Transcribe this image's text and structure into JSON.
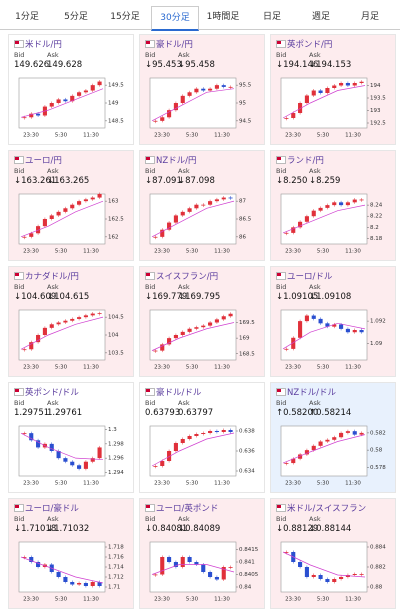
{
  "tabs": [
    "1分足",
    "5分足",
    "15分足",
    "30分足",
    "1時間足",
    "日足",
    "週足",
    "月足"
  ],
  "active_tab": 3,
  "bid_label": "Bid",
  "ask_label": "Ask",
  "times": [
    "23:30",
    "5:30",
    "11:30"
  ],
  "up_color": "#e0303a",
  "down_color": "#2a4fd0",
  "ma_color": "#d040d0",
  "cards": [
    {
      "name": "米ドル/円",
      "bid": "149.626",
      "ask": "149.628",
      "bg": "#ffffff",
      "chart": {
        "ylim": [
          148.3,
          149.7
        ],
        "yticks": [
          149.5,
          149,
          148.5
        ],
        "closes": [
          148.6,
          148.7,
          148.65,
          148.9,
          149.0,
          149.1,
          149.05,
          149.2,
          149.3,
          149.35,
          149.5,
          149.6
        ],
        "ma": [
          148.6,
          148.8,
          149.1,
          149.4
        ]
      }
    },
    {
      "name": "豪ドル/円",
      "bid": "↓95.453",
      "ask": "↓95.458",
      "bg": "#fdecee",
      "chart": {
        "ylim": [
          94.3,
          95.7
        ],
        "yticks": [
          95.5,
          95,
          94.5
        ],
        "closes": [
          94.5,
          94.6,
          94.8,
          95.0,
          95.2,
          95.3,
          95.4,
          95.35,
          95.4,
          95.5,
          95.45,
          95.45
        ],
        "ma": [
          94.5,
          94.9,
          95.3,
          95.4
        ]
      }
    },
    {
      "name": "英ポンド/円",
      "bid": "↓194.146",
      "ask": "↓194.153",
      "bg": "#fdecee",
      "chart": {
        "ylim": [
          192.3,
          194.3
        ],
        "yticks": [
          194,
          193.5,
          193,
          192.5
        ],
        "closes": [
          192.7,
          192.9,
          193.3,
          193.6,
          193.8,
          193.7,
          193.9,
          194.0,
          194.1,
          194.0,
          194.1,
          194.15
        ],
        "ma": [
          192.7,
          193.3,
          193.8,
          194.0
        ]
      }
    },
    {
      "name": "ユーロ/円",
      "bid": "↓163.261",
      "ask": "↓163.265",
      "bg": "#fdecee",
      "chart": {
        "ylim": [
          161.8,
          163.2
        ],
        "yticks": [
          163,
          162.5,
          162
        ],
        "closes": [
          162.0,
          162.1,
          162.3,
          162.5,
          162.6,
          162.7,
          162.8,
          162.9,
          163.0,
          163.05,
          163.1,
          163.2
        ],
        "ma": [
          162.0,
          162.3,
          162.7,
          163.0
        ]
      }
    },
    {
      "name": "NZドル/円",
      "bid": "↓87.091",
      "ask": "↓87.098",
      "bg": "#fdecee",
      "chart": {
        "ylim": [
          85.8,
          87.2
        ],
        "yticks": [
          87,
          86.5,
          86
        ],
        "closes": [
          86.0,
          86.2,
          86.4,
          86.6,
          86.7,
          86.8,
          86.9,
          86.9,
          87.0,
          87.05,
          87.1,
          87.09
        ],
        "ma": [
          86.0,
          86.4,
          86.8,
          87.0
        ]
      }
    },
    {
      "name": "ランド/円",
      "bid": "↓8.250",
      "ask": "↓8.259",
      "bg": "#fdecee",
      "chart": {
        "ylim": [
          8.17,
          8.26
        ],
        "yticks": [
          8.24,
          8.22,
          8.2,
          8.18
        ],
        "closes": [
          8.19,
          8.2,
          8.21,
          8.22,
          8.23,
          8.235,
          8.24,
          8.245,
          8.24,
          8.245,
          8.25,
          8.25
        ],
        "ma": [
          8.19,
          8.21,
          8.23,
          8.24
        ]
      }
    },
    {
      "name": "カナダドル/円",
      "bid": "↓104.609",
      "ask": "↓104.615",
      "bg": "#fdecee",
      "chart": {
        "ylim": [
          103.3,
          104.7
        ],
        "yticks": [
          104.5,
          104,
          103.5
        ],
        "closes": [
          103.6,
          103.8,
          104.0,
          104.2,
          104.3,
          104.35,
          104.4,
          104.45,
          104.5,
          104.55,
          104.6,
          104.61
        ],
        "ma": [
          103.6,
          104.0,
          104.3,
          104.5
        ]
      }
    },
    {
      "name": "スイスフラン/円",
      "bid": "↓169.779",
      "ask": "↓169.795",
      "bg": "#fdecee",
      "chart": {
        "ylim": [
          168.3,
          169.9
        ],
        "yticks": [
          169.5,
          169,
          168.5
        ],
        "closes": [
          168.6,
          168.8,
          169.0,
          169.1,
          169.2,
          169.3,
          169.35,
          169.4,
          169.5,
          169.6,
          169.7,
          169.78
        ],
        "ma": [
          168.6,
          169.0,
          169.3,
          169.5
        ]
      }
    },
    {
      "name": "ユーロ/ドル",
      "bid": "↓1.09105",
      "ask": "↓1.09108",
      "bg": "#fdecee",
      "chart": {
        "ylim": [
          1.0885,
          1.093
        ],
        "yticks": [
          1.092,
          1.09
        ],
        "closes": [
          1.0895,
          1.0905,
          1.092,
          1.0925,
          1.0922,
          1.0918,
          1.0915,
          1.0917,
          1.0913,
          1.091,
          1.0912,
          1.091
        ],
        "ma": [
          1.0895,
          1.091,
          1.0918,
          1.0913
        ]
      }
    },
    {
      "name": "英ポンド/ドル",
      "bid": "1.29751",
      "ask": "1.29761",
      "bg": "#ffffff",
      "chart": {
        "ylim": [
          1.2935,
          1.3005
        ],
        "yticks": [
          1.3,
          1.298,
          1.296,
          1.294
        ],
        "closes": [
          1.2995,
          1.2985,
          1.2975,
          1.298,
          1.297,
          1.296,
          1.2955,
          1.295,
          1.2945,
          1.2955,
          1.296,
          1.2975
        ],
        "ma": [
          1.2995,
          1.2975,
          1.296,
          1.2958
        ]
      }
    },
    {
      "name": "豪ドル/ドル",
      "bid": "0.63793",
      "ask": "0.63797",
      "bg": "#ffffff",
      "chart": {
        "ylim": [
          0.6335,
          0.6385
        ],
        "yticks": [
          0.638,
          0.636,
          0.634
        ],
        "closes": [
          0.6345,
          0.635,
          0.636,
          0.6368,
          0.6372,
          0.6375,
          0.6377,
          0.6378,
          0.638,
          0.6379,
          0.6381,
          0.6379
        ],
        "ma": [
          0.6345,
          0.636,
          0.6372,
          0.6378
        ]
      }
    },
    {
      "name": "NZドル/ドル",
      "bid": "↑0.58200",
      "ask": "↑0.58214",
      "bg": "#e8f1fd",
      "chart": {
        "ylim": [
          0.577,
          0.5828
        ],
        "yticks": [
          0.582,
          0.58,
          0.578
        ],
        "closes": [
          0.5785,
          0.579,
          0.5795,
          0.58,
          0.5805,
          0.581,
          0.5812,
          0.5815,
          0.582,
          0.5822,
          0.5818,
          0.582
        ],
        "ma": [
          0.5785,
          0.5798,
          0.581,
          0.5818
        ]
      }
    },
    {
      "name": "ユーロ/豪ドル",
      "bid": "↓1.71018",
      "ask": "↓1.71032",
      "bg": "#fdecee",
      "chart": {
        "ylim": [
          1.709,
          1.719
        ],
        "yticks": [
          1.718,
          1.716,
          1.714,
          1.712,
          1.71
        ],
        "closes": [
          1.716,
          1.715,
          1.714,
          1.7145,
          1.713,
          1.712,
          1.711,
          1.7105,
          1.7108,
          1.7102,
          1.711,
          1.7102
        ],
        "ma": [
          1.716,
          1.714,
          1.712,
          1.7108
        ]
      }
    },
    {
      "name": "ユーロ/英ポンド",
      "bid": "↓0.84081",
      "ask": "↓0.84089",
      "bg": "#fdecee",
      "chart": {
        "ylim": [
          0.8398,
          0.8418
        ],
        "yticks": [
          0.8415,
          0.841,
          0.8405,
          0.84
        ],
        "closes": [
          0.8405,
          0.8412,
          0.841,
          0.8408,
          0.8412,
          0.841,
          0.8409,
          0.8406,
          0.8404,
          0.8403,
          0.8408,
          0.8408
        ],
        "ma": [
          0.8405,
          0.8409,
          0.8409,
          0.8406
        ]
      }
    },
    {
      "name": "米ドル/スイスフラン",
      "bid": "↓0.88129",
      "ask": "↓0.88144",
      "bg": "#fdecee",
      "chart": {
        "ylim": [
          0.8795,
          0.8845
        ],
        "yticks": [
          0.884,
          0.882,
          0.88
        ],
        "closes": [
          0.8835,
          0.8825,
          0.882,
          0.881,
          0.8812,
          0.8808,
          0.8805,
          0.8808,
          0.881,
          0.8812,
          0.8813,
          0.8813
        ],
        "ma": [
          0.8835,
          0.8822,
          0.8812,
          0.881
        ]
      }
    }
  ]
}
